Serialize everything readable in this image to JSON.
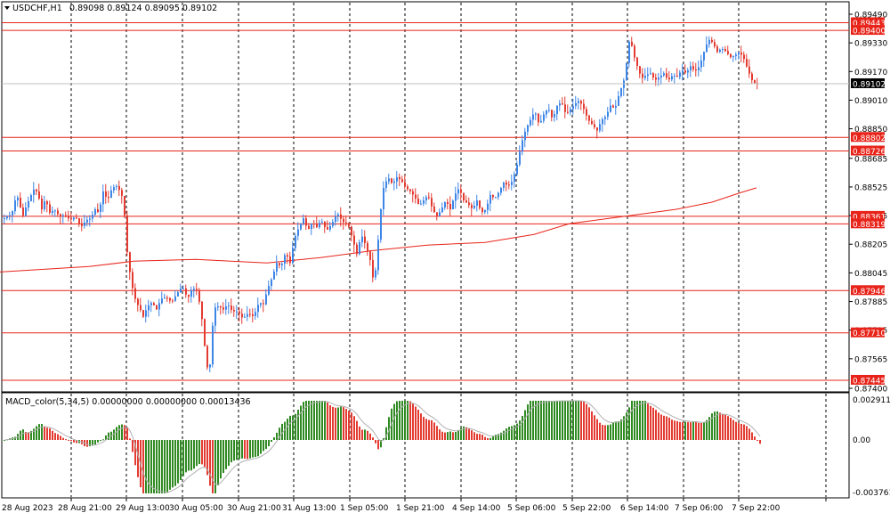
{
  "window": {
    "symbol_label": "USDCHF,H1",
    "ohlc_text": "0.89098 0.89124 0.89095 0.89102",
    "menu_icon": "triangle-down-icon"
  },
  "colors": {
    "bull": "#3d85e6",
    "bear": "#e33b31",
    "level": "#e8241a",
    "ma": "#e8241a",
    "grid": "#000000",
    "macd_pos": "#2f8a22",
    "macd_neg": "#e33b31",
    "signal": "#b0b0b0",
    "price_marker": "#000000"
  },
  "macd": {
    "title": "MACD_color(5,34,5) 0.00000000 0.00000000 0.00013436",
    "axis_labels": [
      "0.0029111",
      "0.00",
      "-0.0037610"
    ]
  },
  "chart_data": {
    "type": "candlestick",
    "symbol": "USDCHF",
    "timeframe": "H1",
    "ylim": [
      0.874,
      0.8949
    ],
    "price_ticks": [
      "0.89490",
      "0.89330",
      "0.89170",
      "0.89010",
      "0.88850",
      "0.88685",
      "0.88525",
      "0.88365",
      "0.88205",
      "0.88045",
      "0.87885",
      "0.87725",
      "0.87565",
      "0.87400"
    ],
    "time_labels": [
      "28 Aug 2023",
      "28 Aug 21:00",
      "29 Aug 13:00",
      "30 Aug 05:00",
      "30 Aug 21:00",
      "31 Aug 13:00",
      "1 Sep 05:00",
      "1 Sep 21:00",
      "4 Sep 14:00",
      "5 Sep 06:00",
      "5 Sep 22:00",
      "6 Sep 14:00",
      "7 Sep 06:00",
      "7 Sep 22:00"
    ],
    "current_price": "0.89102",
    "levels": [
      "0.89443",
      "0.89400",
      "0.88802",
      "0.88726",
      "0.88361",
      "0.88319",
      "0.87946",
      "0.87710",
      "0.87445"
    ],
    "close_path": [
      [
        0,
        0.8833
      ],
      [
        6,
        0.8836
      ],
      [
        12,
        0.8837
      ],
      [
        16,
        0.8845
      ],
      [
        20,
        0.8847
      ],
      [
        24,
        0.8835
      ],
      [
        28,
        0.8841
      ],
      [
        33,
        0.8847
      ],
      [
        38,
        0.8852
      ],
      [
        42,
        0.8848
      ],
      [
        46,
        0.884
      ],
      [
        50,
        0.8846
      ],
      [
        55,
        0.8838
      ],
      [
        60,
        0.884
      ],
      [
        66,
        0.8836
      ],
      [
        72,
        0.8837
      ],
      [
        78,
        0.8834
      ],
      [
        84,
        0.8836
      ],
      [
        90,
        0.883
      ],
      [
        96,
        0.8834
      ],
      [
        101,
        0.8835
      ],
      [
        106,
        0.884
      ],
      [
        110,
        0.8838
      ],
      [
        115,
        0.885
      ],
      [
        120,
        0.8845
      ],
      [
        125,
        0.8852
      ],
      [
        130,
        0.8853
      ],
      [
        134,
        0.885
      ],
      [
        138,
        0.8845
      ],
      [
        141,
        0.882
      ],
      [
        144,
        0.8808
      ],
      [
        148,
        0.8796
      ],
      [
        152,
        0.8788
      ],
      [
        156,
        0.8785
      ],
      [
        160,
        0.878
      ],
      [
        165,
        0.8786
      ],
      [
        170,
        0.8788
      ],
      [
        175,
        0.8784
      ],
      [
        180,
        0.879
      ],
      [
        186,
        0.8791
      ],
      [
        192,
        0.8788
      ],
      [
        198,
        0.8793
      ],
      [
        204,
        0.8797
      ],
      [
        210,
        0.879
      ],
      [
        215,
        0.8796
      ],
      [
        220,
        0.8795
      ],
      [
        225,
        0.8784
      ],
      [
        228,
        0.8768
      ],
      [
        231,
        0.8755
      ],
      [
        234,
        0.8745
      ],
      [
        237,
        0.877
      ],
      [
        240,
        0.8785
      ],
      [
        245,
        0.8786
      ],
      [
        250,
        0.8784
      ],
      [
        255,
        0.8787
      ],
      [
        260,
        0.8783
      ],
      [
        266,
        0.8783
      ],
      [
        272,
        0.8779
      ],
      [
        278,
        0.8782
      ],
      [
        284,
        0.878
      ],
      [
        290,
        0.8788
      ],
      [
        295,
        0.8787
      ],
      [
        300,
        0.8796
      ],
      [
        305,
        0.8802
      ],
      [
        310,
        0.881
      ],
      [
        315,
        0.8808
      ],
      [
        320,
        0.8816
      ],
      [
        325,
        0.881
      ],
      [
        330,
        0.8824
      ],
      [
        335,
        0.883
      ],
      [
        340,
        0.8835
      ],
      [
        345,
        0.8828
      ],
      [
        350,
        0.8833
      ],
      [
        355,
        0.883
      ],
      [
        360,
        0.8834
      ],
      [
        366,
        0.8828
      ],
      [
        372,
        0.8832
      ],
      [
        378,
        0.8838
      ],
      [
        384,
        0.8833
      ],
      [
        390,
        0.8832
      ],
      [
        396,
        0.8822
      ],
      [
        400,
        0.8815
      ],
      [
        405,
        0.8826
      ],
      [
        410,
        0.882
      ],
      [
        416,
        0.881
      ],
      [
        419,
        0.8798
      ],
      [
        422,
        0.881
      ],
      [
        426,
        0.8836
      ],
      [
        430,
        0.8852
      ],
      [
        435,
        0.8858
      ],
      [
        440,
        0.8854
      ],
      [
        445,
        0.8858
      ],
      [
        450,
        0.8856
      ],
      [
        455,
        0.8852
      ],
      [
        460,
        0.885
      ],
      [
        465,
        0.8847
      ],
      [
        470,
        0.8842
      ],
      [
        475,
        0.8845
      ],
      [
        480,
        0.8848
      ],
      [
        485,
        0.884
      ],
      [
        490,
        0.8836
      ],
      [
        495,
        0.884
      ],
      [
        500,
        0.8845
      ],
      [
        505,
        0.884
      ],
      [
        510,
        0.8848
      ],
      [
        515,
        0.8852
      ],
      [
        520,
        0.8845
      ],
      [
        525,
        0.8843
      ],
      [
        530,
        0.884
      ],
      [
        535,
        0.8845
      ],
      [
        540,
        0.8838
      ],
      [
        545,
        0.884
      ],
      [
        550,
        0.8848
      ],
      [
        555,
        0.8846
      ],
      [
        560,
        0.885
      ],
      [
        565,
        0.8855
      ],
      [
        570,
        0.8853
      ],
      [
        575,
        0.8856
      ],
      [
        580,
        0.8865
      ],
      [
        585,
        0.8877
      ],
      [
        590,
        0.8885
      ],
      [
        595,
        0.889
      ],
      [
        600,
        0.8895
      ],
      [
        605,
        0.8887
      ],
      [
        610,
        0.8893
      ],
      [
        615,
        0.8897
      ],
      [
        620,
        0.889
      ],
      [
        625,
        0.8898
      ],
      [
        630,
        0.89
      ],
      [
        635,
        0.8893
      ],
      [
        640,
        0.8896
      ],
      [
        645,
        0.8899
      ],
      [
        650,
        0.8901
      ],
      [
        655,
        0.8896
      ],
      [
        660,
        0.889
      ],
      [
        665,
        0.8887
      ],
      [
        670,
        0.8884
      ],
      [
        675,
        0.889
      ],
      [
        680,
        0.8892
      ],
      [
        685,
        0.8898
      ],
      [
        690,
        0.8896
      ],
      [
        695,
        0.8905
      ],
      [
        700,
        0.8912
      ],
      [
        704,
        0.8925
      ],
      [
        707,
        0.8938
      ],
      [
        710,
        0.8928
      ],
      [
        715,
        0.892
      ],
      [
        720,
        0.8913
      ],
      [
        725,
        0.8915
      ],
      [
        730,
        0.8916
      ],
      [
        735,
        0.8912
      ],
      [
        740,
        0.8914
      ],
      [
        745,
        0.8916
      ],
      [
        750,
        0.8912
      ],
      [
        755,
        0.8915
      ],
      [
        760,
        0.8914
      ],
      [
        765,
        0.8918
      ],
      [
        770,
        0.8916
      ],
      [
        775,
        0.892
      ],
      [
        780,
        0.8917
      ],
      [
        785,
        0.892
      ],
      [
        790,
        0.8928
      ],
      [
        795,
        0.8935
      ],
      [
        800,
        0.8933
      ],
      [
        805,
        0.8928
      ],
      [
        810,
        0.893
      ],
      [
        815,
        0.8928
      ],
      [
        820,
        0.8925
      ],
      [
        825,
        0.8926
      ],
      [
        830,
        0.8928
      ],
      [
        835,
        0.8924
      ],
      [
        840,
        0.8917
      ],
      [
        845,
        0.8911
      ],
      [
        850,
        0.891
      ]
    ],
    "ma_path": [
      [
        0,
        0.8805
      ],
      [
        100,
        0.8808
      ],
      [
        150,
        0.8811
      ],
      [
        220,
        0.8812
      ],
      [
        300,
        0.881
      ],
      [
        360,
        0.8813
      ],
      [
        420,
        0.8817
      ],
      [
        480,
        0.882
      ],
      [
        545,
        0.88215
      ],
      [
        600,
        0.8826
      ],
      [
        640,
        0.8832
      ],
      [
        700,
        0.8836
      ],
      [
        760,
        0.884
      ],
      [
        800,
        0.8844
      ],
      [
        830,
        0.8849
      ],
      [
        850,
        0.8852
      ]
    ],
    "macd_range": [
      -0.003761,
      0.0029111
    ]
  }
}
